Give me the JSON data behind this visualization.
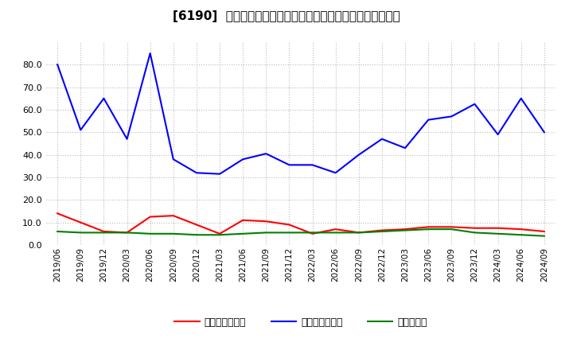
{
  "title": "[6190]  売上債権回転率、買入債務回転率、在庫回転率の推移",
  "x_labels": [
    "2019/06",
    "2019/09",
    "2019/12",
    "2020/03",
    "2020/06",
    "2020/09",
    "2020/12",
    "2021/03",
    "2021/06",
    "2021/09",
    "2021/12",
    "2022/03",
    "2022/06",
    "2022/09",
    "2022/12",
    "2023/03",
    "2023/06",
    "2023/09",
    "2023/12",
    "2024/03",
    "2024/06",
    "2024/09"
  ],
  "receivables_turnover": [
    14.0,
    10.0,
    6.0,
    5.5,
    12.5,
    13.0,
    9.0,
    5.0,
    11.0,
    10.5,
    9.0,
    5.0,
    7.0,
    5.5,
    6.5,
    7.0,
    8.0,
    8.0,
    7.5,
    7.5,
    7.0,
    6.0
  ],
  "payables_turnover": [
    80.0,
    51.0,
    65.0,
    47.0,
    85.0,
    38.0,
    32.0,
    31.5,
    38.0,
    40.5,
    35.5,
    35.5,
    32.0,
    40.0,
    47.0,
    43.0,
    55.5,
    57.0,
    62.5,
    49.0,
    65.0,
    50.0
  ],
  "inventory_turnover": [
    6.0,
    5.5,
    5.5,
    5.5,
    5.0,
    5.0,
    4.5,
    4.5,
    5.0,
    5.5,
    5.5,
    5.5,
    5.5,
    5.5,
    6.0,
    6.5,
    7.0,
    7.0,
    5.5,
    5.0,
    4.5,
    4.0
  ],
  "receivables_color": "#ff0000",
  "payables_color": "#0000ff",
  "inventory_color": "#008000",
  "legend_labels": [
    "売上債権回転率",
    "買入債務回転率",
    "在庫回転率"
  ],
  "ylim": [
    0.0,
    90.0
  ],
  "yticks": [
    0.0,
    10.0,
    20.0,
    30.0,
    40.0,
    50.0,
    60.0,
    70.0,
    80.0
  ],
  "background_color": "#ffffff",
  "grid_color": "#bbbbbb",
  "title_fontsize": 11
}
